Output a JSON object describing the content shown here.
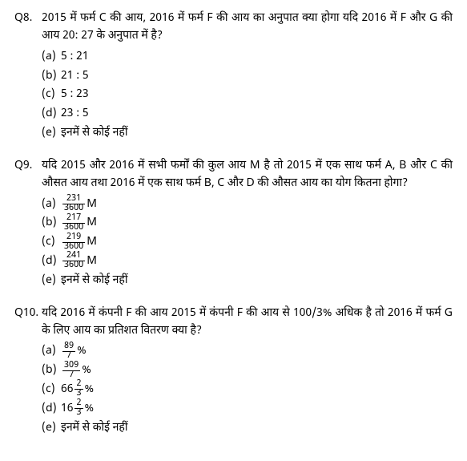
{
  "questions": [
    {
      "number": "Q8.",
      "text": "2015 में फर्म C की आय, 2016 में फर्म F की आय का अनुपात क्या होगा यदि 2016 में F और G की आय 20: 27 के अनुपात में है?",
      "options": [
        {
          "label": "(a)",
          "type": "plain",
          "text": "5 : 21"
        },
        {
          "label": "(b)",
          "type": "plain",
          "text": "21 : 5"
        },
        {
          "label": "(c)",
          "type": "plain",
          "text": "5 : 23"
        },
        {
          "label": "(d)",
          "type": "plain",
          "text": "23 : 5"
        },
        {
          "label": "(e)",
          "type": "plain",
          "text": "इनमें से कोई नहीं"
        }
      ]
    },
    {
      "number": "Q9.",
      "text": "यदि 2015 और 2016 में सभी फर्मों की कुल आय M है तो 2015 में एक साथ फर्म A, B और C की औसत आय तथा 2016 में एक साथ फर्म B, C और D की औसत आय का योग कितना होगा?",
      "options": [
        {
          "label": "(a)",
          "type": "frac",
          "num": "231",
          "den": "3600",
          "suffix": "M"
        },
        {
          "label": "(b)",
          "type": "frac",
          "num": "217",
          "den": "3600",
          "suffix": "M"
        },
        {
          "label": "(c)",
          "type": "frac",
          "num": "219",
          "den": "3600",
          "suffix": "M"
        },
        {
          "label": "(d)",
          "type": "frac",
          "num": "241",
          "den": "3600",
          "suffix": "M"
        },
        {
          "label": "(e)",
          "type": "plain",
          "text": "इनमें से कोई नहीं"
        }
      ]
    },
    {
      "number": "Q10.",
      "text": "यदि 2016 में कंपनी F की आय 2015 में कंपनी F की आय से 100/3% अधिक है तो 2016 में फर्म G के लिए आय का प्रतिशत वितरण क्या है?",
      "options": [
        {
          "label": "(a)",
          "type": "frac",
          "num": "89",
          "den": "7",
          "suffix": "%"
        },
        {
          "label": "(b)",
          "type": "frac",
          "num": "309",
          "den": "7",
          "suffix": "%"
        },
        {
          "label": "(c)",
          "type": "mixedfrac",
          "whole": "66",
          "num": "2",
          "den": "3",
          "suffix": "%"
        },
        {
          "label": "(d)",
          "type": "mixedfrac",
          "whole": "16",
          "num": "2",
          "den": "3",
          "suffix": "%"
        },
        {
          "label": "(e)",
          "type": "plain",
          "text": "इनमें से कोई नहीं"
        }
      ]
    }
  ]
}
